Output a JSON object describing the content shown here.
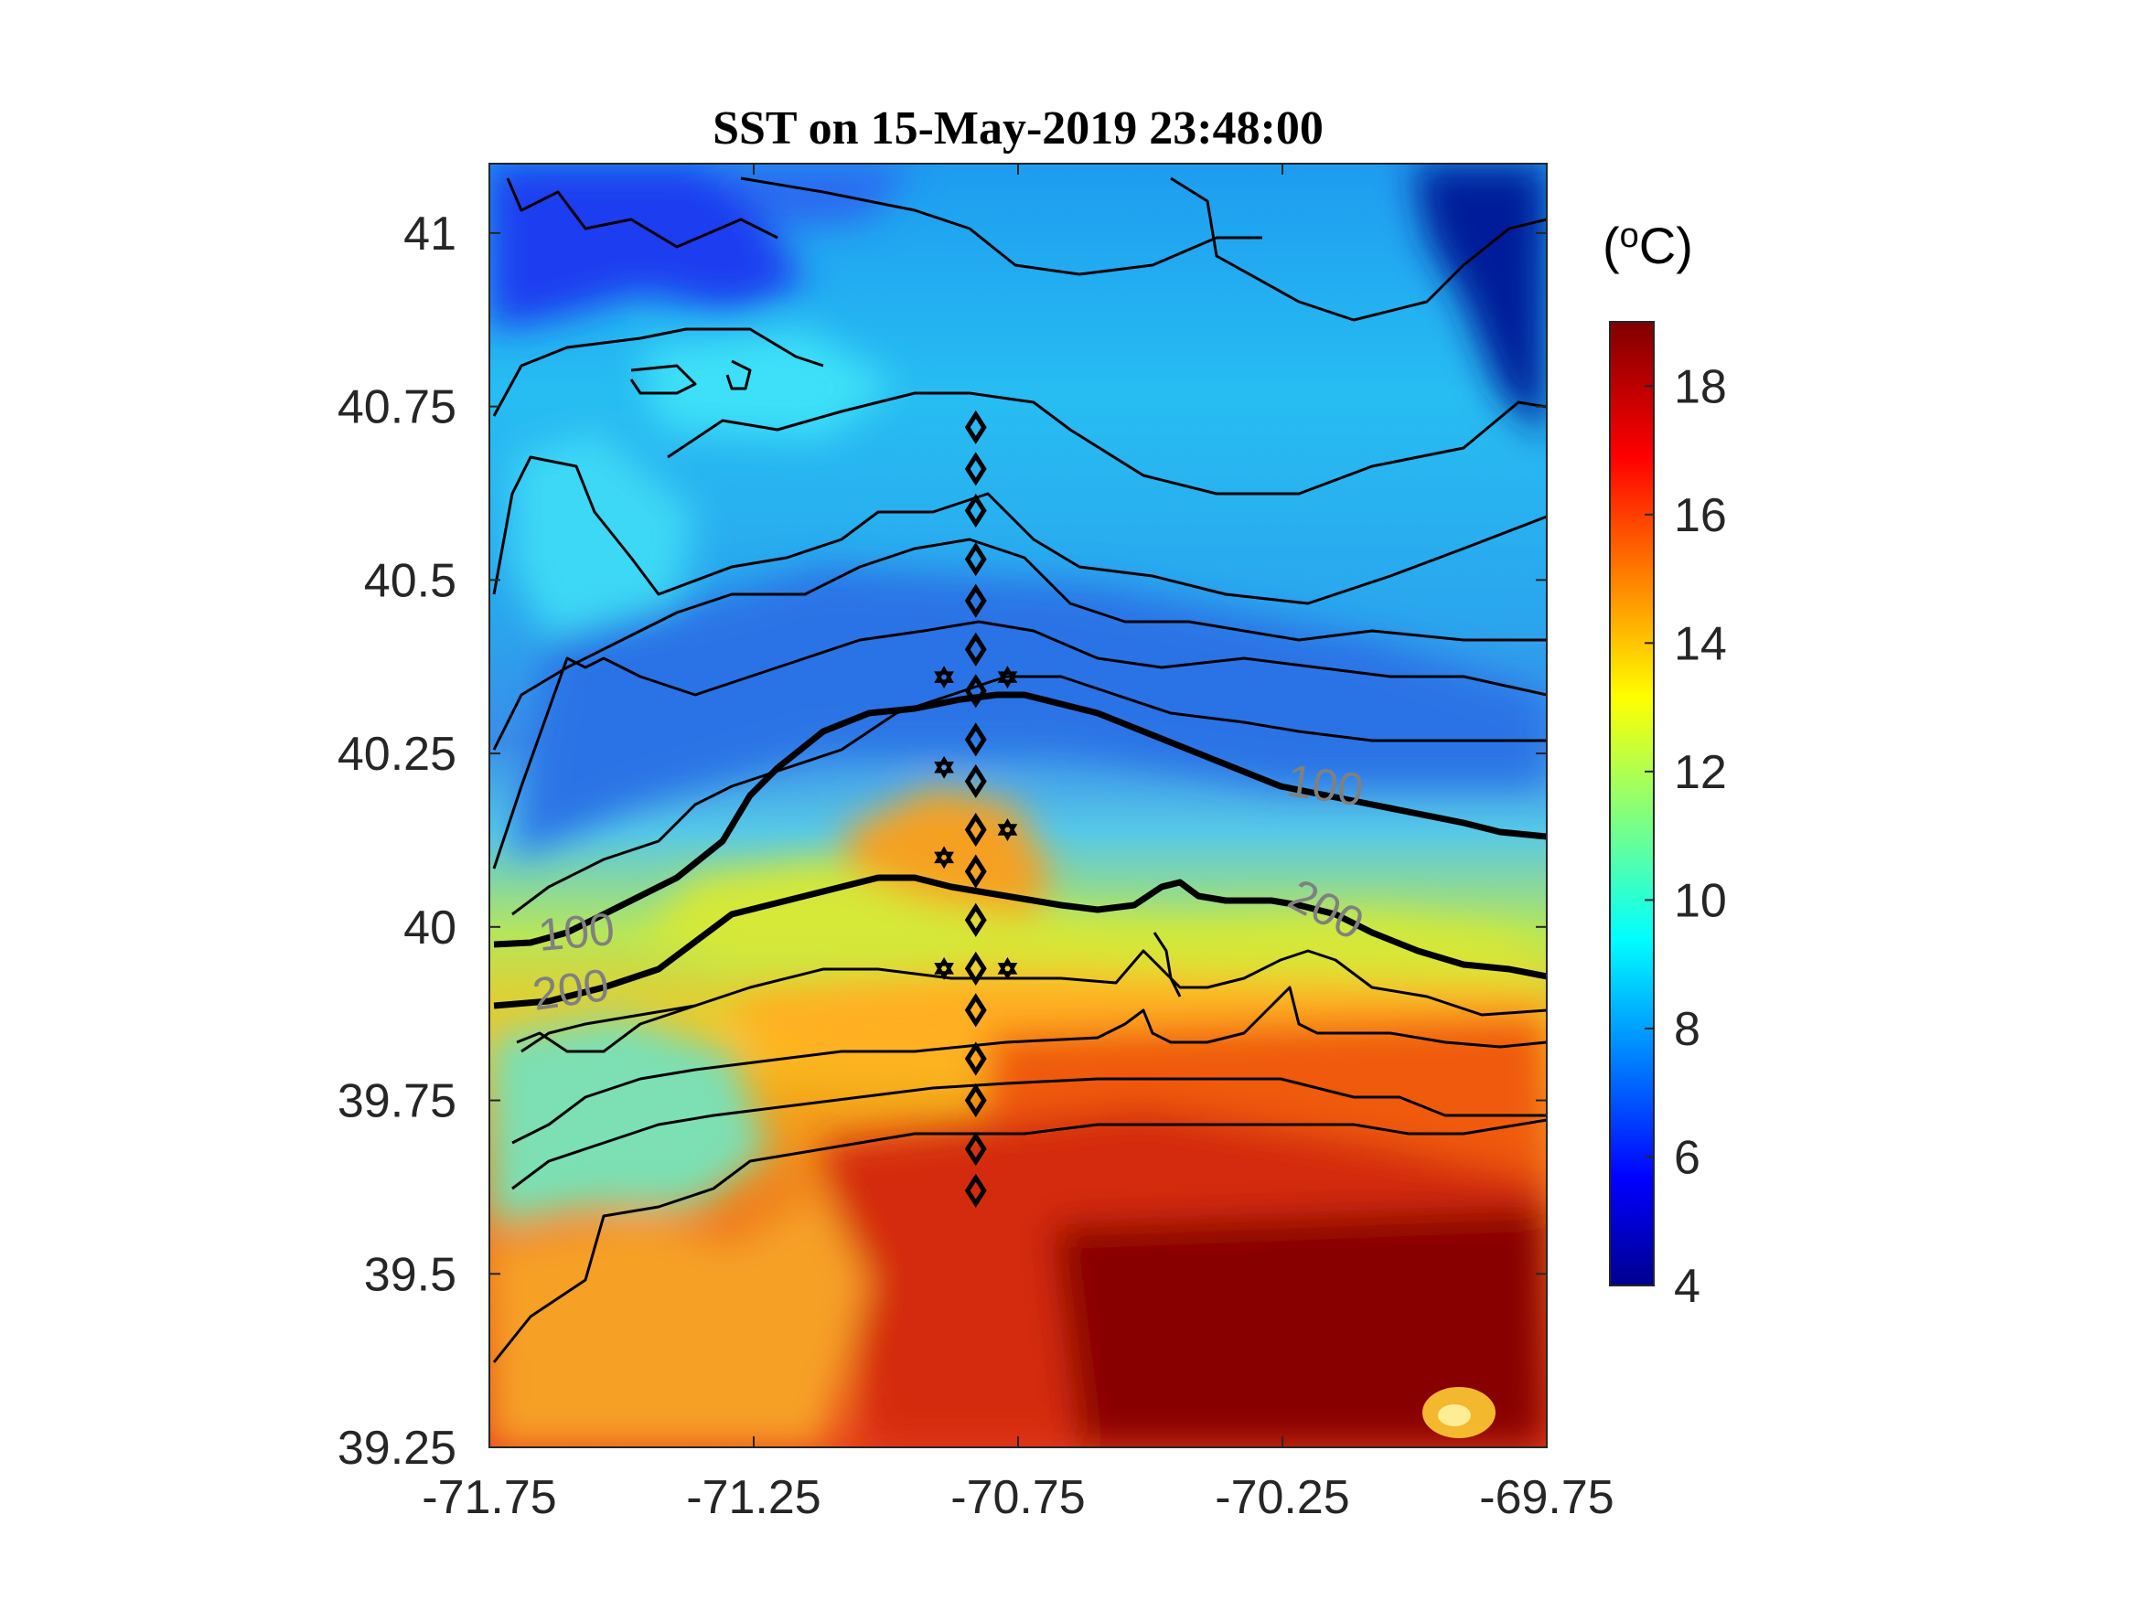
{
  "title": "SST on 15-May-2019 23:48:00",
  "map": {
    "lon_range": [
      -71.75,
      -69.75
    ],
    "lat_range": [
      39.25,
      41.1
    ],
    "x_ticks": [
      "-71.75",
      "-71.25",
      "-70.75",
      "-70.25",
      "-69.75"
    ],
    "y_ticks": [
      "41",
      "40.75",
      "40.5",
      "40.25",
      "40",
      "39.75",
      "39.5",
      "39.25"
    ],
    "contour_labels": [
      "100",
      "100",
      "200",
      "200"
    ]
  },
  "colorbar": {
    "unit_prefix": "(",
    "unit_sup": "o",
    "unit_suffix": "C)",
    "ticks": [
      "18",
      "16",
      "14",
      "12",
      "10",
      "8",
      "6",
      "4"
    ],
    "colormap": "jet",
    "range": [
      4,
      19
    ]
  },
  "stations": {
    "diamonds": [
      {
        "lon": -70.83,
        "lat": 40.72
      },
      {
        "lon": -70.83,
        "lat": 40.66
      },
      {
        "lon": -70.83,
        "lat": 40.6
      },
      {
        "lon": -70.83,
        "lat": 40.53
      },
      {
        "lon": -70.83,
        "lat": 40.47
      },
      {
        "lon": -70.83,
        "lat": 40.4
      },
      {
        "lon": -70.83,
        "lat": 40.34
      },
      {
        "lon": -70.83,
        "lat": 40.27
      },
      {
        "lon": -70.83,
        "lat": 40.21
      },
      {
        "lon": -70.83,
        "lat": 40.14
      },
      {
        "lon": -70.83,
        "lat": 40.08
      },
      {
        "lon": -70.83,
        "lat": 40.01
      },
      {
        "lon": -70.83,
        "lat": 39.94
      },
      {
        "lon": -70.83,
        "lat": 39.88
      },
      {
        "lon": -70.83,
        "lat": 39.81
      },
      {
        "lon": -70.83,
        "lat": 39.75
      },
      {
        "lon": -70.83,
        "lat": 39.68
      },
      {
        "lon": -70.83,
        "lat": 39.62
      }
    ],
    "stars": [
      {
        "lon": -70.89,
        "lat": 40.36
      },
      {
        "lon": -70.77,
        "lat": 40.36
      },
      {
        "lon": -70.89,
        "lat": 40.23
      },
      {
        "lon": -70.77,
        "lat": 40.14
      },
      {
        "lon": -70.89,
        "lat": 40.1
      },
      {
        "lon": -70.89,
        "lat": 39.94
      },
      {
        "lon": -70.77,
        "lat": 39.94
      }
    ]
  }
}
